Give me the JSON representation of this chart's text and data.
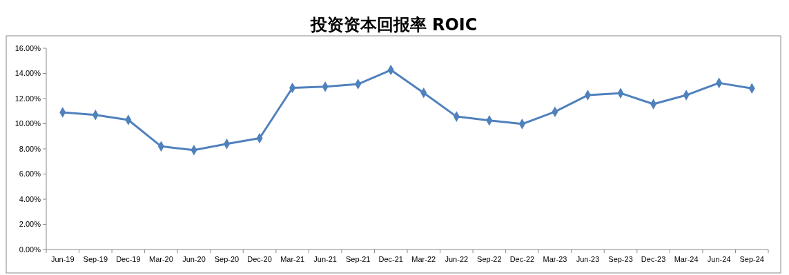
{
  "chart_data": {
    "type": "line",
    "title": "投资资本回报率 ROIC",
    "categories": [
      "Jun-19",
      "Sep-19",
      "Dec-19",
      "Mar-20",
      "Jun-20",
      "Sep-20",
      "Dec-20",
      "Mar-21",
      "Jun-21",
      "Sep-21",
      "Dec-21",
      "Mar-22",
      "Jun-22",
      "Sep-22",
      "Dec-22",
      "Mar-23",
      "Jun-23",
      "Sep-23",
      "Dec-23",
      "Mar-24",
      "Jun-24",
      "Sep-24"
    ],
    "series": [
      {
        "color": "#4f81bd",
        "values": [
          10.9,
          10.7,
          10.3,
          8.2,
          7.9,
          8.4,
          8.85,
          12.85,
          12.95,
          13.15,
          14.27,
          12.45,
          10.57,
          10.26,
          9.98,
          10.95,
          12.27,
          12.43,
          11.56,
          12.27,
          13.24,
          12.81
        ]
      }
    ],
    "ylim": [
      0,
      16
    ],
    "yticks": [
      {
        "value": 0,
        "label": "0.00%"
      },
      {
        "value": 2,
        "label": "2.00%"
      },
      {
        "value": 4,
        "label": "4.00%"
      },
      {
        "value": 6,
        "label": "6.00%"
      },
      {
        "value": 8,
        "label": "8.00%"
      },
      {
        "value": 10,
        "label": "10.00%"
      },
      {
        "value": 12,
        "label": "12.00%"
      },
      {
        "value": 14,
        "label": "14.00%"
      },
      {
        "value": 16,
        "label": "16.00%"
      }
    ],
    "marker": "diamond",
    "line_style": "solid"
  }
}
